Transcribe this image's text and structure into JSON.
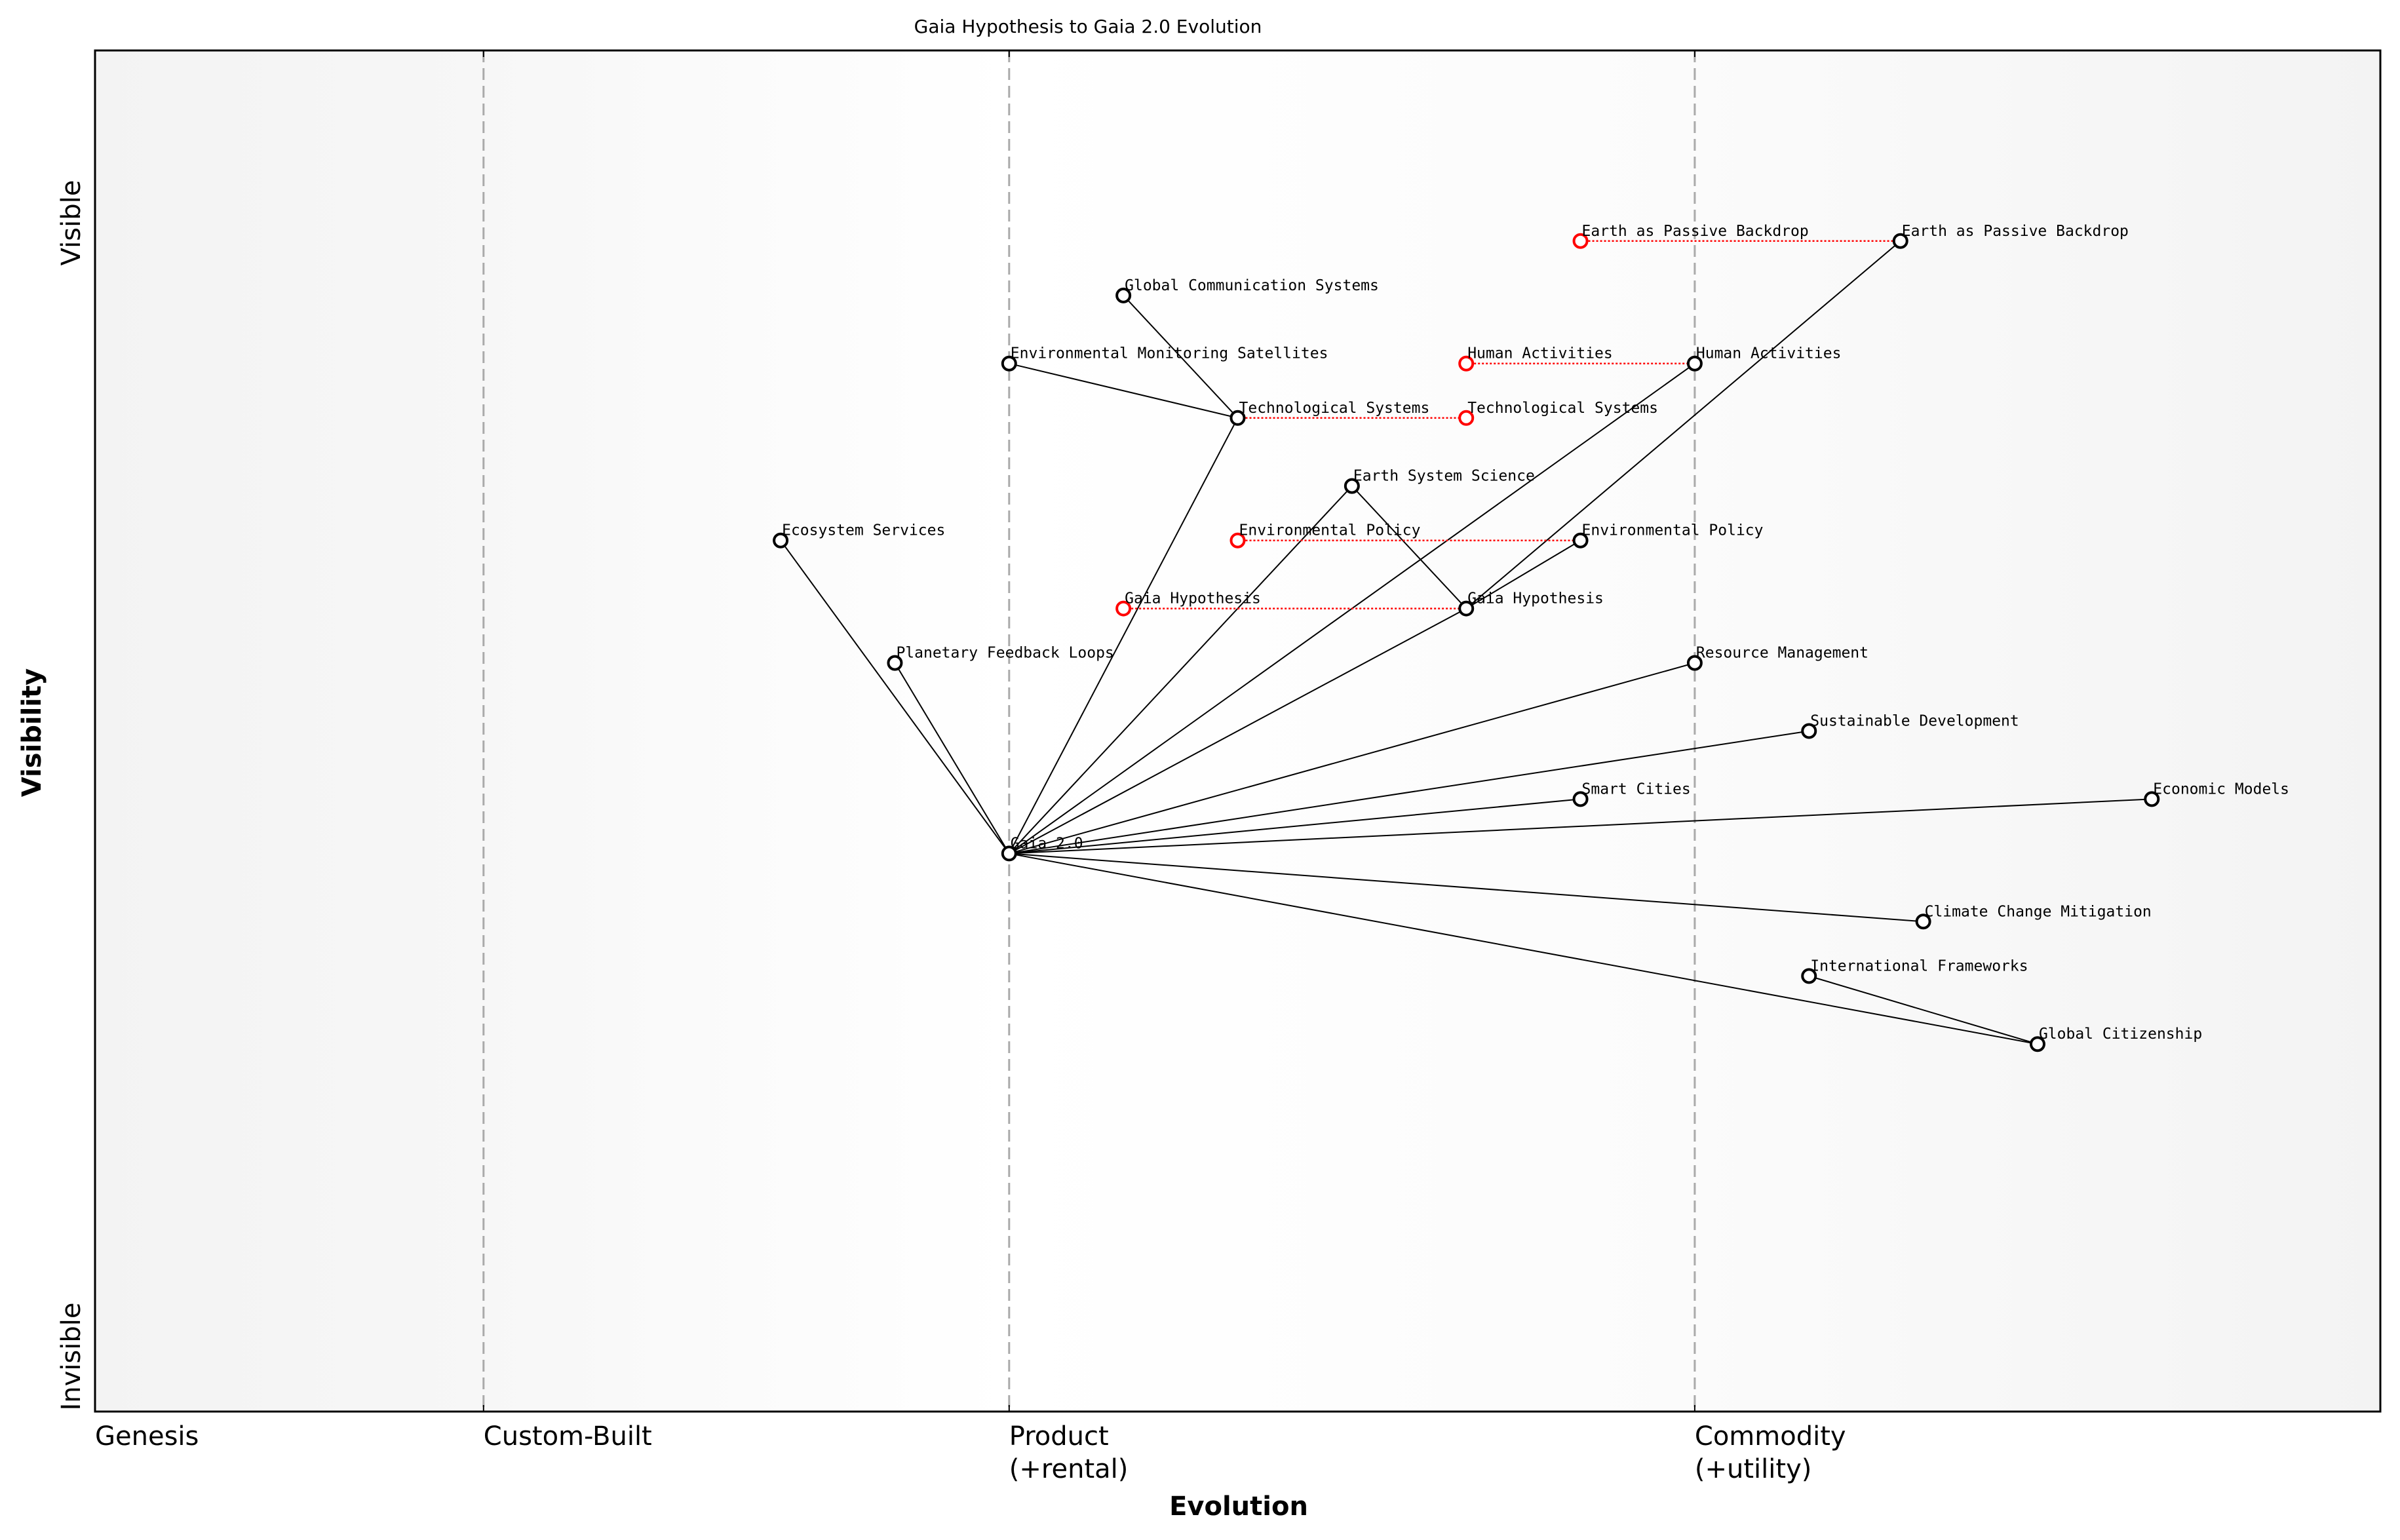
{
  "title": "Gaia Hypothesis to Gaia 2.0 Evolution",
  "x_axis": {
    "label": "Evolution",
    "stages": [
      {
        "label": "Genesis",
        "evolution": 0.0
      },
      {
        "label": "Custom-Built",
        "evolution": 0.17
      },
      {
        "label": "Product",
        "label2": "(+rental)",
        "evolution": 0.4
      },
      {
        "label": "Commodity",
        "label2": "(+utility)",
        "evolution": 0.7
      }
    ]
  },
  "y_axis": {
    "label": "Visibility",
    "top_label": "Visible",
    "bottom_label": "Invisible"
  },
  "colors": {
    "node": "#000000",
    "ghost": "#ff0000",
    "stage_line": "#aaaaaa",
    "band_dark": "#f3f3f3",
    "band_light": "#ffffff"
  },
  "components": [
    {
      "name": "Gaia 2.0",
      "evolution": 0.4,
      "visibility": 0.41
    },
    {
      "name": "Ecosystem Services",
      "evolution": 0.3,
      "visibility": 0.64
    },
    {
      "name": "Planetary Feedback Loops",
      "evolution": 0.35,
      "visibility": 0.55
    },
    {
      "name": "Global Communication Systems",
      "evolution": 0.45,
      "visibility": 0.82
    },
    {
      "name": "Environmental Monitoring Satellites",
      "evolution": 0.4,
      "visibility": 0.77
    },
    {
      "name": "Technological Systems",
      "evolution": 0.5,
      "visibility": 0.73
    },
    {
      "name": "Earth System Science",
      "evolution": 0.55,
      "visibility": 0.68
    },
    {
      "name": "Gaia Hypothesis",
      "evolution": 0.6,
      "visibility": 0.59
    },
    {
      "name": "Environmental Policy",
      "evolution": 0.65,
      "visibility": 0.64
    },
    {
      "name": "Human Activities",
      "evolution": 0.7,
      "visibility": 0.77
    },
    {
      "name": "Earth as Passive Backdrop",
      "evolution": 0.79,
      "visibility": 0.86
    },
    {
      "name": "Resource Management",
      "evolution": 0.7,
      "visibility": 0.55
    },
    {
      "name": "Sustainable Development",
      "evolution": 0.75,
      "visibility": 0.5
    },
    {
      "name": "Smart Cities",
      "evolution": 0.65,
      "visibility": 0.45
    },
    {
      "name": "Economic Models",
      "evolution": 0.9,
      "visibility": 0.45
    },
    {
      "name": "Climate Change Mitigation",
      "evolution": 0.8,
      "visibility": 0.36
    },
    {
      "name": "International Frameworks",
      "evolution": 0.75,
      "visibility": 0.32
    },
    {
      "name": "Global Citizenship",
      "evolution": 0.85,
      "visibility": 0.27
    }
  ],
  "evolved_components": [
    {
      "name": "Earth as Passive Backdrop",
      "from": 0.65,
      "to": 0.79,
      "visibility": 0.86
    },
    {
      "name": "Human Activities",
      "from": 0.6,
      "to": 0.7,
      "visibility": 0.77
    },
    {
      "name": "Technological Systems",
      "from": 0.5,
      "to": 0.6,
      "visibility": 0.73,
      "ghost_at": "to"
    },
    {
      "name": "Environmental Policy",
      "from": 0.5,
      "to": 0.65,
      "visibility": 0.64
    },
    {
      "name": "Gaia Hypothesis",
      "from": 0.45,
      "to": 0.6,
      "visibility": 0.59
    }
  ],
  "links": [
    [
      "Gaia 2.0",
      "Ecosystem Services"
    ],
    [
      "Gaia 2.0",
      "Planetary Feedback Loops"
    ],
    [
      "Gaia 2.0",
      "Technological Systems"
    ],
    [
      "Gaia 2.0",
      "Earth System Science"
    ],
    [
      "Gaia 2.0",
      "Human Activities"
    ],
    [
      "Gaia 2.0",
      "Gaia Hypothesis"
    ],
    [
      "Gaia 2.0",
      "Resource Management"
    ],
    [
      "Gaia 2.0",
      "Sustainable Development"
    ],
    [
      "Gaia 2.0",
      "Smart Cities"
    ],
    [
      "Gaia 2.0",
      "Economic Models"
    ],
    [
      "Gaia 2.0",
      "Climate Change Mitigation"
    ],
    [
      "Gaia 2.0",
      "Global Citizenship"
    ],
    [
      "Technological Systems",
      "Global Communication Systems"
    ],
    [
      "Technological Systems",
      "Environmental Monitoring Satellites"
    ],
    [
      "Earth System Science",
      "Gaia Hypothesis"
    ],
    [
      "Gaia Hypothesis",
      "Environmental Policy"
    ],
    [
      "Gaia Hypothesis",
      "Earth as Passive Backdrop"
    ],
    [
      "Global Citizenship",
      "International Frameworks"
    ]
  ]
}
